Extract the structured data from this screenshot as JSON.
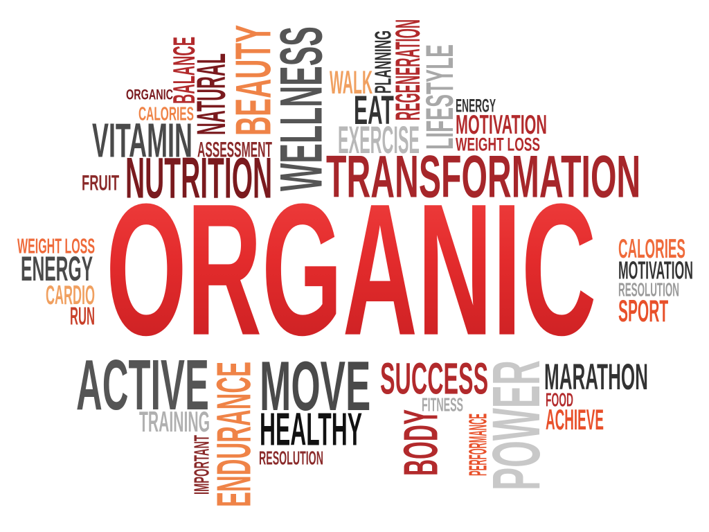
{
  "palette": {
    "red": "#e63334",
    "darkred": "#7a1a1e",
    "orange": "#ef8347",
    "gray": "#4a4a4a",
    "lightgray": "#b8b8b8",
    "black": "#111111"
  },
  "words": [
    {
      "text": "ORGANIC",
      "color": "#e32b2c"
    },
    {
      "text": "ORGANIC",
      "color": "#7a1a1e"
    },
    {
      "text": "BALANCE",
      "color": "#b22a2c"
    },
    {
      "text": "CALORIES",
      "color": "#ef8347"
    },
    {
      "text": "NATURAL",
      "color": "#7a1a1e"
    },
    {
      "text": "BEAUTY",
      "color": "#ef8347"
    },
    {
      "text": "WELLNESS",
      "color": "#555555"
    },
    {
      "text": "WALK",
      "color": "#f0a060"
    },
    {
      "text": "PLANNING",
      "color": "#333333"
    },
    {
      "text": "REGENERATION",
      "color": "#b22a2c"
    },
    {
      "text": "EAT",
      "color": "#333333"
    },
    {
      "text": "LIFESTYLE",
      "color": "#a8a8a8"
    },
    {
      "text": "ENERGY",
      "color": "#333333"
    },
    {
      "text": "MOTIVATION",
      "color": "#b22a2c"
    },
    {
      "text": "WEIGHT LOSS",
      "color": "#b22a2c"
    },
    {
      "text": "VITAMIN",
      "color": "#4a4a4a"
    },
    {
      "text": "ASSESSMENT",
      "color": "#8a2a2a"
    },
    {
      "text": "EXERCISE",
      "color": "#b8b8b8"
    },
    {
      "text": "FRUIT",
      "color": "#8a2a2a"
    },
    {
      "text": "NUTRITION",
      "color": "#7a1a1e"
    },
    {
      "text": "TRANSFORMATION",
      "color": "#a6262a"
    },
    {
      "text": "WEIGHT LOSS",
      "color": "#ef6a3a"
    },
    {
      "text": "ENERGY",
      "color": "#4a4a4a"
    },
    {
      "text": "CARDIO",
      "color": "#f0a060"
    },
    {
      "text": "RUN",
      "color": "#c8402a"
    },
    {
      "text": "CALORIES",
      "color": "#ef6a3a"
    },
    {
      "text": "MOTIVATION",
      "color": "#333333"
    },
    {
      "text": "RESOLUTION",
      "color": "#9a9a9a"
    },
    {
      "text": "SPORT",
      "color": "#e8502a"
    },
    {
      "text": "ACTIVE",
      "color": "#555555"
    },
    {
      "text": "TRAINING",
      "color": "#b0b0b0"
    },
    {
      "text": "IMPORTANT",
      "color": "#8a2a2a"
    },
    {
      "text": "ENDURANCE",
      "color": "#ef8347"
    },
    {
      "text": "MOVE",
      "color": "#4a4a4a"
    },
    {
      "text": "HEALTHY",
      "color": "#111111"
    },
    {
      "text": "RESOLUTION",
      "color": "#8a2a2a"
    },
    {
      "text": "SUCCESS",
      "color": "#b22a2c"
    },
    {
      "text": "FITNESS",
      "color": "#a8a8a8"
    },
    {
      "text": "BODY",
      "color": "#b22a2c"
    },
    {
      "text": "PERFORMANCE",
      "color": "#e8502a"
    },
    {
      "text": "POWER",
      "color": "#c8c8c8"
    },
    {
      "text": "MARATHON",
      "color": "#333333"
    },
    {
      "text": "FOOD",
      "color": "#b22a2c"
    },
    {
      "text": "ACHIEVE",
      "color": "#e8502a"
    }
  ]
}
